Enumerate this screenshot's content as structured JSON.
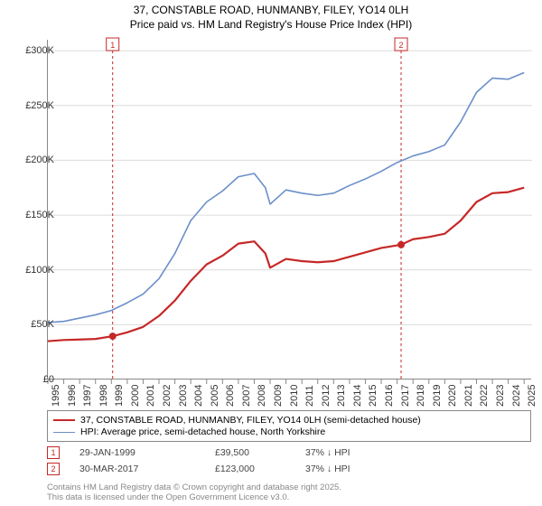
{
  "title_line1": "37, CONSTABLE ROAD, HUNMANBY, FILEY, YO14 0LH",
  "title_line2": "Price paid vs. HM Land Registry's House Price Index (HPI)",
  "chart": {
    "type": "line",
    "x_axis": {
      "min": 1995,
      "max": 2025.5,
      "ticks": [
        1995,
        1996,
        1997,
        1998,
        1999,
        2000,
        2001,
        2002,
        2003,
        2004,
        2005,
        2006,
        2007,
        2008,
        2009,
        2010,
        2011,
        2012,
        2013,
        2014,
        2015,
        2016,
        2017,
        2018,
        2019,
        2020,
        2021,
        2022,
        2023,
        2024,
        2025
      ]
    },
    "y_axis": {
      "min": 0,
      "max": 310000,
      "ticks": [
        0,
        50000,
        100000,
        150000,
        200000,
        250000,
        300000
      ],
      "tick_labels": [
        "£0",
        "£50K",
        "£100K",
        "£150K",
        "£200K",
        "£250K",
        "£300K"
      ]
    },
    "grid_color": "#dcdcdc",
    "axis_color": "#888888",
    "background_color": "#ffffff",
    "series": [
      {
        "name": "property_price",
        "label": "37, CONSTABLE ROAD, HUNMANBY, FILEY, YO14 0LH (semi-detached house)",
        "color": "#c62828",
        "line_width": 2.2,
        "points": [
          [
            1995,
            35000
          ],
          [
            1996,
            36000
          ],
          [
            1997,
            36500
          ],
          [
            1998,
            37000
          ],
          [
            1999.08,
            39500
          ],
          [
            2000,
            43000
          ],
          [
            2001,
            48000
          ],
          [
            2002,
            58000
          ],
          [
            2003,
            72000
          ],
          [
            2004,
            90000
          ],
          [
            2005,
            105000
          ],
          [
            2006,
            113000
          ],
          [
            2007,
            124000
          ],
          [
            2008,
            126000
          ],
          [
            2008.7,
            115000
          ],
          [
            2009,
            102000
          ],
          [
            2010,
            110000
          ],
          [
            2011,
            108000
          ],
          [
            2012,
            107000
          ],
          [
            2013,
            108000
          ],
          [
            2014,
            112000
          ],
          [
            2015,
            116000
          ],
          [
            2016,
            120000
          ],
          [
            2017.25,
            123000
          ],
          [
            2018,
            128000
          ],
          [
            2019,
            130000
          ],
          [
            2020,
            133000
          ],
          [
            2021,
            145000
          ],
          [
            2022,
            162000
          ],
          [
            2023,
            170000
          ],
          [
            2024,
            171000
          ],
          [
            2025,
            175000
          ]
        ]
      },
      {
        "name": "hpi",
        "label": "HPI: Average price, semi-detached house, North Yorkshire",
        "color": "#6b8fc9",
        "line_width": 1.6,
        "points": [
          [
            1995,
            52000
          ],
          [
            1996,
            53000
          ],
          [
            1997,
            56000
          ],
          [
            1998,
            59000
          ],
          [
            1999,
            63000
          ],
          [
            2000,
            70000
          ],
          [
            2001,
            78000
          ],
          [
            2002,
            92000
          ],
          [
            2003,
            115000
          ],
          [
            2004,
            145000
          ],
          [
            2005,
            162000
          ],
          [
            2006,
            172000
          ],
          [
            2007,
            185000
          ],
          [
            2008,
            188000
          ],
          [
            2008.7,
            175000
          ],
          [
            2009,
            160000
          ],
          [
            2010,
            173000
          ],
          [
            2011,
            170000
          ],
          [
            2012,
            168000
          ],
          [
            2013,
            170000
          ],
          [
            2014,
            177000
          ],
          [
            2015,
            183000
          ],
          [
            2016,
            190000
          ],
          [
            2017,
            198000
          ],
          [
            2018,
            204000
          ],
          [
            2019,
            208000
          ],
          [
            2020,
            214000
          ],
          [
            2021,
            235000
          ],
          [
            2022,
            262000
          ],
          [
            2023,
            275000
          ],
          [
            2024,
            274000
          ],
          [
            2025,
            280000
          ]
        ]
      }
    ],
    "markers": [
      {
        "n": "1",
        "date_label": "29-JAN-1999",
        "x": 1999.08,
        "price": 39500,
        "price_label": "£39,500",
        "pct_label": "37% ↓ HPI"
      },
      {
        "n": "2",
        "date_label": "30-MAR-2017",
        "x": 2017.25,
        "price": 123000,
        "price_label": "£123,000",
        "pct_label": "37% ↓ HPI"
      }
    ]
  },
  "attribution_line1": "Contains HM Land Registry data © Crown copyright and database right 2025.",
  "attribution_line2": "This data is licensed under the Open Government Licence v3.0."
}
